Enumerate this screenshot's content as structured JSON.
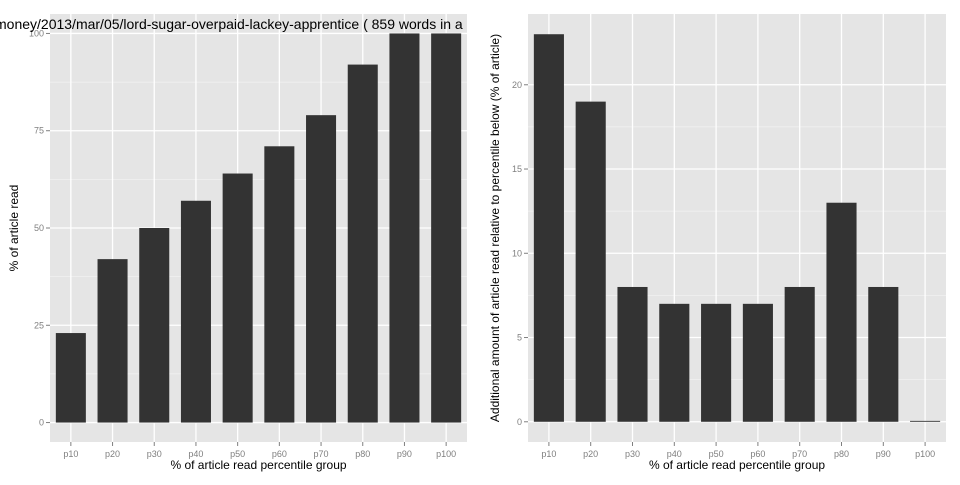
{
  "chart_data": [
    {
      "type": "bar",
      "title": "money/2013/mar/05/lord-sugar-overpaid-lackey-apprentice ( 859 words in a",
      "xlabel": "% of article read percentile group",
      "ylabel": "% of article read",
      "categories": [
        "p10",
        "p20",
        "p30",
        "p40",
        "p50",
        "p60",
        "p70",
        "p80",
        "p90",
        "p100"
      ],
      "values": [
        23,
        42,
        50,
        57,
        64,
        71,
        79,
        92,
        100,
        100
      ],
      "ylim": [
        -5,
        105
      ],
      "yticks": [
        0,
        25,
        50,
        75,
        100
      ],
      "ytick_labels": [
        "0",
        "25",
        "50",
        "75",
        "100"
      ],
      "grid": true,
      "colors": {
        "panel": "#e5e5e5",
        "bar": "#333333",
        "grid_major": "#ffffff",
        "grid_minor": "#f2f2f2"
      }
    },
    {
      "type": "bar",
      "title": "",
      "xlabel": "% of article read percentile group",
      "ylabel": "Additional amount of article read relative to percentile below (% of article)",
      "categories": [
        "p10",
        "p20",
        "p30",
        "p40",
        "p50",
        "p60",
        "p70",
        "p80",
        "p90",
        "p100"
      ],
      "values": [
        23,
        19,
        8,
        7,
        7,
        7,
        8,
        13,
        8,
        0
      ],
      "ylim": [
        -1.2,
        24.2
      ],
      "yticks": [
        0,
        5,
        10,
        15,
        20
      ],
      "ytick_labels": [
        "0",
        "5",
        "10",
        "15",
        "20"
      ],
      "grid": true,
      "colors": {
        "panel": "#e5e5e5",
        "bar": "#333333",
        "grid_major": "#ffffff",
        "grid_minor": "#f2f2f2"
      }
    }
  ]
}
